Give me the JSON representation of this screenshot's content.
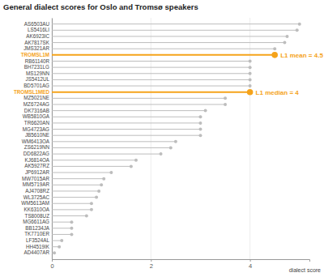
{
  "chart_data": {
    "type": "lollipop",
    "orientation": "horizontal",
    "title": "General dialect scores for Oslo and Tromsø speakers",
    "x_label": "dialect score",
    "categories": [
      "AS6503AU",
      "LS5416LI",
      "AK6923IC",
      "AK7817SK",
      "JMS321AR",
      "TROMSL1M",
      "RB61140R",
      "BH7231LG",
      "MS129NN",
      "JS5412UL",
      "BD5701AG",
      "TROMSL1MED",
      "MZ5021NE",
      "MZ6724AG",
      "DK7316AB",
      "WB5810GA",
      "TR6620AN",
      "MG4723AG",
      "JB5610NE",
      "WM6413OA",
      "ZS6219NN",
      "DD6822AG",
      "KJ6814OA",
      "AK5927RZ",
      "JP6912AR",
      "MW7015AR",
      "MM5719AR",
      "AJ4708RZ",
      "WL3725AC",
      "WM5613AM",
      "KK6310OA",
      "TS8008UZ",
      "MG6611AG",
      "BB1234JA",
      "TK7710ER",
      "LF3524AL",
      "HH4519IK",
      "AD4407AR"
    ],
    "values": [
      5.0,
      4.95,
      4.75,
      4.7,
      4.5,
      4.5,
      4.0,
      4.0,
      4.0,
      4.0,
      4.0,
      4.0,
      3.5,
      3.5,
      3.1,
      3.0,
      3.0,
      3.0,
      3.0,
      2.5,
      2.4,
      2.2,
      1.7,
      1.6,
      1.2,
      1.05,
      1.0,
      0.95,
      0.9,
      0.8,
      0.8,
      0.7,
      0.4,
      0.4,
      0.4,
      0.2,
      0.15,
      0.05
    ],
    "colors": [
      "#bdbdbd",
      "#bdbdbd",
      "#bdbdbd",
      "#bdbdbd",
      "#bdbdbd",
      "#f5a31a",
      "#bdbdbd",
      "#bdbdbd",
      "#bdbdbd",
      "#bdbdbd",
      "#bdbdbd",
      "#f5a31a",
      "#bdbdbd",
      "#bdbdbd",
      "#bdbdbd",
      "#bdbdbd",
      "#bdbdbd",
      "#bdbdbd",
      "#bdbdbd",
      "#bdbdbd",
      "#bdbdbd",
      "#bdbdbd",
      "#bdbdbd",
      "#bdbdbd",
      "#bdbdbd",
      "#bdbdbd",
      "#bdbdbd",
      "#bdbdbd",
      "#bdbdbd",
      "#bdbdbd",
      "#bdbdbd",
      "#bdbdbd",
      "#bdbdbd",
      "#bdbdbd",
      "#bdbdbd",
      "#bdbdbd",
      "#bdbdbd",
      "#bdbdbd"
    ],
    "annotations": [
      {
        "text": "L1 mean = 4.5",
        "category": "TROMSL1M"
      },
      {
        "text": "L1 median = 4",
        "category": "TROMSL1MED"
      }
    ],
    "xlim": [
      0,
      5.2
    ],
    "xticks": [
      0,
      2,
      4
    ],
    "grid": true
  }
}
